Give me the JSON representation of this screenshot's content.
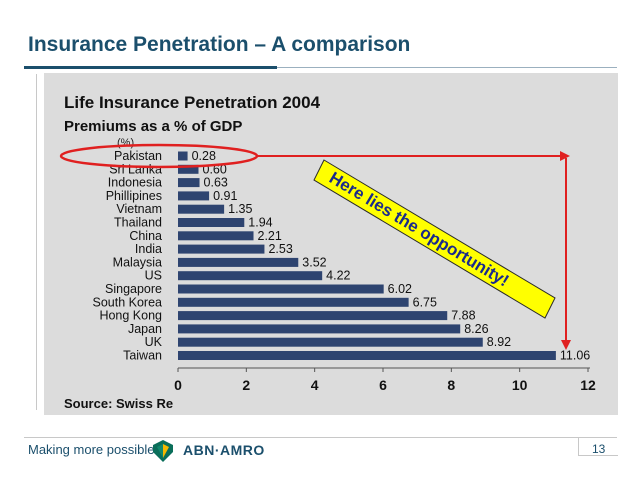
{
  "slide": {
    "title": "Insurance Penetration – A comparison",
    "tagline": "Making more possible",
    "brand": "ABN·AMRO",
    "page_number": "13"
  },
  "chart_data": {
    "type": "bar",
    "orientation": "horizontal",
    "title": "Life Insurance Penetration 2004",
    "subtitle": "Premiums as a % of GDP",
    "unit_label": "(%)",
    "source": "Source: Swiss Re",
    "categories": [
      "Pakistan",
      "Sri Lanka",
      "Indonesia",
      "Phillipines",
      "Vietnam",
      "Thailand",
      "China",
      "India",
      "Malaysia",
      "US",
      "Singapore",
      "South Korea",
      "Hong Kong",
      "Japan",
      "UK",
      "Taiwan"
    ],
    "values": [
      0.28,
      0.6,
      0.63,
      0.91,
      1.35,
      1.94,
      2.21,
      2.53,
      3.52,
      4.22,
      6.02,
      6.75,
      7.88,
      8.26,
      8.92,
      11.06
    ],
    "value_labels": [
      "0.28",
      "0.60",
      "0.63",
      "0.91",
      "1.35",
      "1.94",
      "2.21",
      "2.53",
      "3.52",
      "4.22",
      "6.02",
      "6.75",
      "7.88",
      "8.26",
      "8.92",
      "11.06"
    ],
    "xlim": [
      0,
      12
    ],
    "xticks": [
      "0",
      "2",
      "4",
      "6",
      "8",
      "10",
      "12"
    ],
    "bar_color": "#2e4470",
    "grid": false,
    "legend": "none",
    "annotation": {
      "text": "Here lies the opportunity!",
      "text_color": "#1a2a8c",
      "fill_color": "#ffff00",
      "highlight": "Pakistan",
      "highlight_color": "#e02020"
    }
  }
}
